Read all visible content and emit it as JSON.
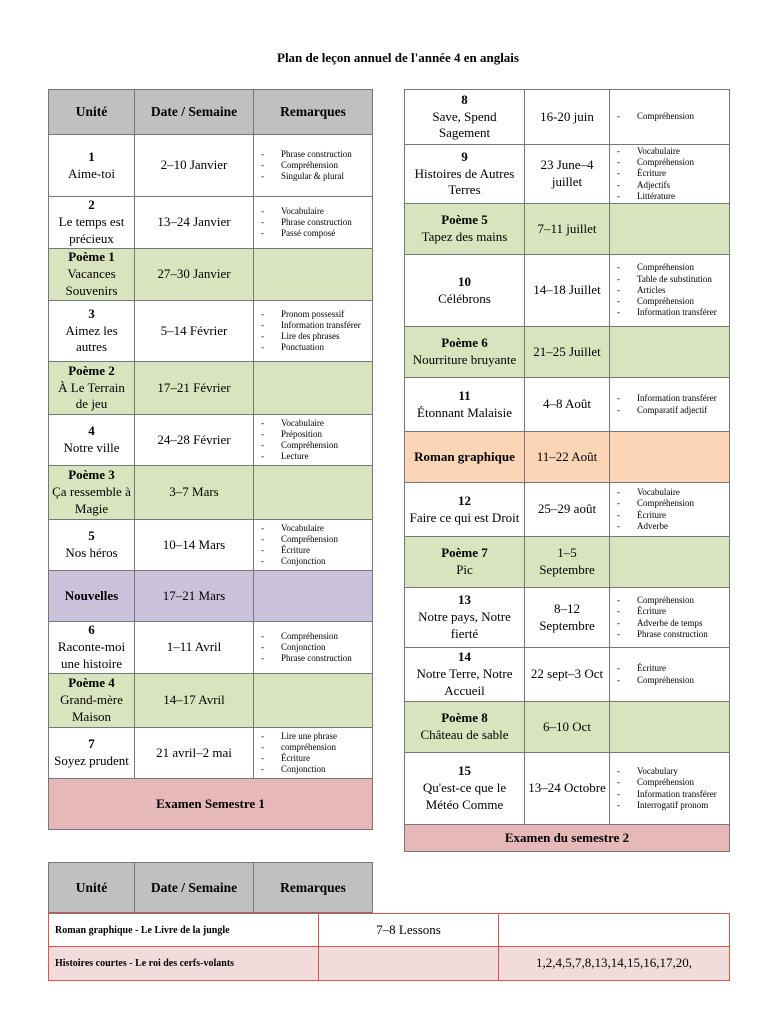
{
  "title": "Plan de leçon annuel de l'année 4 en anglais",
  "header": [
    "Unité",
    "Date / Semaine",
    "Remarques"
  ],
  "left_table": {
    "rows": [
      {
        "title": "1",
        "name": "Aime-toi",
        "date": "2–10 Janvier",
        "remarks": [
          "Phrase construction",
          "Compréhension",
          "Singular & plural"
        ],
        "color": "#ffffff"
      },
      {
        "title": "2",
        "name": "Le temps est précieux",
        "date": "13–24 Janvier",
        "remarks": [
          "Vocabulaire",
          "Phrase construction",
          "Passé composé"
        ],
        "color": "#ffffff"
      },
      {
        "title": "Poème 1",
        "name": "Vacances Souvenirs",
        "date": "27–30 Janvier",
        "color": "#d7e4bd"
      },
      {
        "title": "3",
        "name": "Aimez les autres",
        "date": "5–14 Février",
        "remarks": [
          "Pronom possessif",
          "Information transférer",
          "Lire des phrases",
          "Ponctuation"
        ],
        "color": "#ffffff"
      },
      {
        "title": "Poème 2",
        "name": "À Le Terrain de jeu",
        "date": "17–21 Février",
        "color": "#d7e4bd"
      },
      {
        "title": "4",
        "name": "Notre ville",
        "date": "24–28 Février",
        "remarks": [
          "Vocabulaire",
          "Préposition",
          "Compréhension",
          "Lecture"
        ],
        "color": "#ffffff"
      },
      {
        "title": "Poème 3",
        "name": "Ça ressemble à Magie",
        "date": "3–7 Mars",
        "color": "#d7e4bd"
      },
      {
        "title": "5",
        "name": "Nos héros",
        "date": "10–14 Mars",
        "remarks": [
          "Vocabulaire",
          "Compréhension",
          "Écriture",
          "Conjonction"
        ],
        "color": "#ffffff"
      },
      {
        "title": "Nouvelles",
        "date": "17–21 Mars",
        "color": "#ccc1da"
      },
      {
        "title": "6",
        "name": "Raconte-moi une histoire",
        "date": "1–11 Avril",
        "remarks": [
          "Compréhension",
          "Conjonction",
          "Phrase construction"
        ],
        "color": "#ffffff"
      },
      {
        "title": "Poème 4",
        "name": "Grand-mère Maison",
        "date": "14–17 Avril",
        "color": "#d7e4bd"
      },
      {
        "title": "7",
        "name": "Soyez prudent",
        "date": "21 avril–2 mai",
        "remarks": [
          "Lire une phrase",
          "compréhension",
          "Écriture",
          "Conjonction"
        ],
        "color": "#ffffff"
      }
    ],
    "exam": "Examen Semestre 1",
    "exam_color": "#e6b9b8"
  },
  "right_table": {
    "rows": [
      {
        "title": "8",
        "name": "Save, Spend Sagement",
        "date": "16-20 juin",
        "remarks": [
          "Compréhension"
        ],
        "color": "#ffffff"
      },
      {
        "title": "9",
        "name": "Histoires de Autres Terres",
        "date": "23 June–4 juillet",
        "remarks": [
          "Vocabulaire",
          "Compréhension",
          "Écriture",
          "Adjectifs",
          "Littérature"
        ],
        "color": "#ffffff"
      },
      {
        "title": "Poème 5",
        "name": "Tapez des mains",
        "date": "7–11 juillet",
        "color": "#d7e4bd"
      },
      {
        "title": "10",
        "name": "Célébrons",
        "date": "14–18 Juillet",
        "remarks": [
          "Compréhension",
          "Table de substitution",
          "Articles",
          "Compréhension",
          "Information transférer"
        ],
        "color": "#ffffff"
      },
      {
        "title": "Poème 6",
        "name": "Nourriture bruyante",
        "date": "21–25 Juillet",
        "color": "#d7e4bd"
      },
      {
        "title": "11",
        "name": "Étonnant Malaisie",
        "date": "4–8 Août",
        "remarks": [
          "Information transférer",
          "Comparatif adjectif"
        ],
        "color": "#ffffff"
      },
      {
        "title": "Roman graphique",
        "date": "11–22 Août",
        "color": "#fbd5b5"
      },
      {
        "title": "12",
        "name": "Faire ce qui est Droit",
        "date": "25–29 août",
        "remarks": [
          "Vocabulaire",
          "Compréhension",
          "Écriture",
          "Adverbe"
        ],
        "color": "#ffffff"
      },
      {
        "title": "Poème 7",
        "name": "Pic",
        "date": "1–5 Septembre",
        "color": "#d7e4bd"
      },
      {
        "title": "13",
        "name": "Notre pays, Notre fierté",
        "date": "8–12 Septembre",
        "remarks": [
          "Compréhension",
          "Écriture",
          "Adverbe de temps",
          "Phrase construction"
        ],
        "color": "#ffffff"
      },
      {
        "title": "14",
        "name": "Notre Terre, Notre Accueil",
        "date": "22 sept–3 Oct",
        "remarks": [
          "Écriture",
          "Compréhension"
        ],
        "color": "#ffffff"
      },
      {
        "title": "Poème 8",
        "name": "Château de sable",
        "date": "6–10 Oct",
        "color": "#d7e4bd"
      },
      {
        "title": "15",
        "name": "Qu'est-ce que le Météo Comme",
        "date": "13–24 Octobre",
        "remarks": [
          "Vocabulary",
          "Compréhension",
          "Information transférer",
          "Interrogatif pronom"
        ],
        "color": "#ffffff"
      }
    ],
    "exam": "Examen du semestre 2",
    "exam_color": "#e6b9b8"
  },
  "bottom_table": {
    "rows": [
      {
        "title": "Roman graphique - Le Livre de la jungle",
        "date": "7–8 Lessons",
        "color": "#ffffff"
      },
      {
        "title": "Histoires courtes - Le roi des cerfs-volants",
        "remarks": "1,2,4,5,7,8,13,14,15,16,17,20,",
        "color": "#f2dcdb"
      }
    ]
  }
}
